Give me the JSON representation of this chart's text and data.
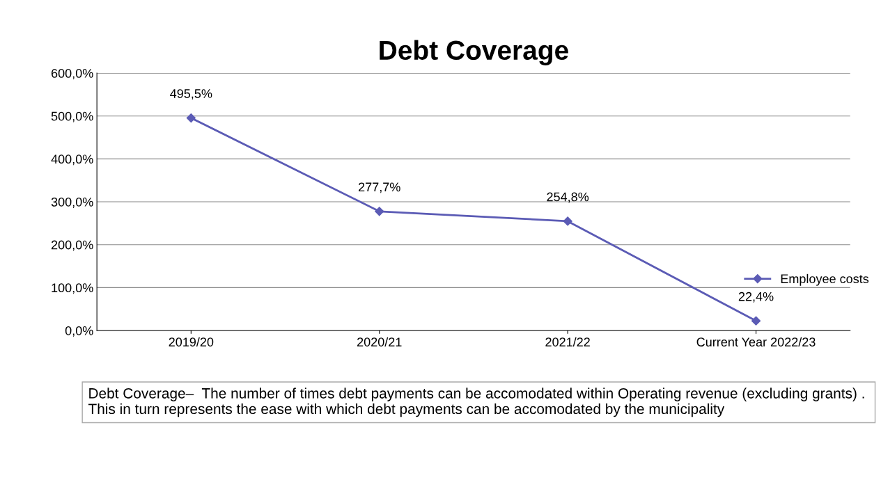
{
  "chart_data": {
    "type": "line",
    "title": "Debt Coverage",
    "categories": [
      "2019/20",
      "2020/21",
      "2021/22",
      "Current Year 2022/23"
    ],
    "series": [
      {
        "name": "Employee costs",
        "color": "#5b5bb5",
        "values": [
          495.5,
          277.7,
          254.8,
          22.4
        ],
        "value_labels": [
          "495,5%",
          "277,7%",
          "254,8%",
          "22,4%"
        ]
      }
    ],
    "ylim": [
      0,
      600
    ],
    "yticks": [
      {
        "value": 0,
        "label": "0,0%"
      },
      {
        "value": 100,
        "label": "100,0%"
      },
      {
        "value": 200,
        "label": "200,0%"
      },
      {
        "value": 300,
        "label": "300,0%"
      },
      {
        "value": 400,
        "label": "400,0%"
      },
      {
        "value": 500,
        "label": "500,0%"
      },
      {
        "value": 600,
        "label": "600,0%"
      }
    ],
    "grid": "y",
    "legend": "right",
    "marker": "diamond",
    "line_style": "solid",
    "annotations": [
      "Debt Coverage–  The number of times debt payments can be accomodated within Operating revenue (excluding grants) .  This in turn represents the ease with which debt payments can be accomodated by the municipality"
    ]
  }
}
